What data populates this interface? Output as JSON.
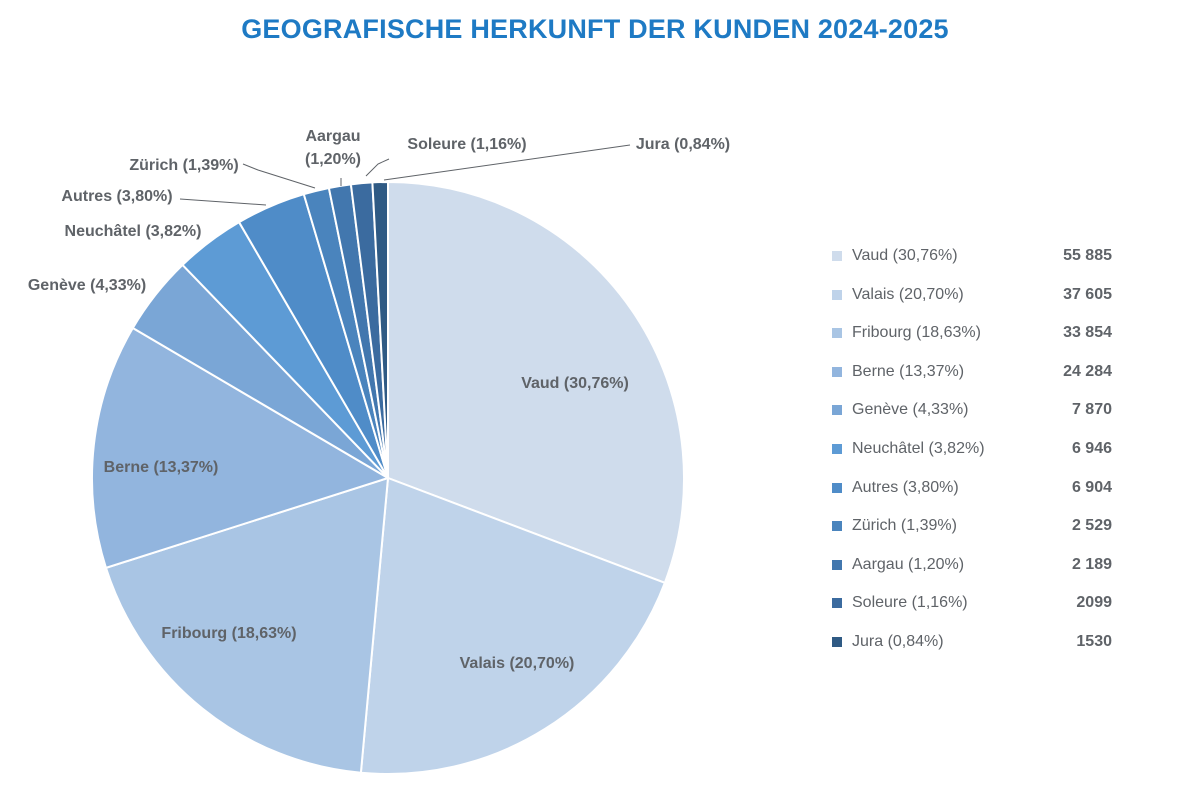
{
  "chart_data": {
    "type": "pie",
    "title": "GEOGRAFISCHE HERKUNFT DER KUNDEN 2024-2025",
    "slices": [
      {
        "label": "Vaud (30,76%)",
        "percent": 30.76,
        "value": 55885,
        "value_text": "55 885",
        "color": "#cfdcec"
      },
      {
        "label": "Valais (20,70%)",
        "percent": 20.7,
        "value": 37605,
        "value_text": "37 605",
        "color": "#bfd3ea"
      },
      {
        "label": "Fribourg (18,63%)",
        "percent": 18.63,
        "value": 33854,
        "value_text": "33 854",
        "color": "#a9c5e4"
      },
      {
        "label": "Berne (13,37%)",
        "percent": 13.37,
        "value": 24284,
        "value_text": "24 284",
        "color": "#92b5de"
      },
      {
        "label": "Genève (4,33%)",
        "percent": 4.33,
        "value": 7870,
        "value_text": "7 870",
        "color": "#7aa6d6"
      },
      {
        "label": "Neuchâtel (3,82%)",
        "percent": 3.82,
        "value": 6946,
        "value_text": "6 946",
        "color": "#5d9bd5"
      },
      {
        "label": "Autres (3,80%)",
        "percent": 3.8,
        "value": 6904,
        "value_text": "6 904",
        "color": "#4f8cc8"
      },
      {
        "label": "Zürich (1,39%)",
        "percent": 1.39,
        "value": 2529,
        "value_text": "2 529",
        "color": "#4a84bd"
      },
      {
        "label": "Aargau (1,20%)",
        "percent": 1.2,
        "value": 2189,
        "value_text": "2 189",
        "color": "#4277ae"
      },
      {
        "label": "Soleure (1,16%)",
        "percent": 1.16,
        "value": 2099,
        "value_text": "2099",
        "color": "#3b6b9f"
      },
      {
        "label": "Jura (0,84%)",
        "percent": 0.84,
        "value": 1530,
        "value_text": "1530",
        "color": "#2f5a84"
      }
    ],
    "legend_position": "right",
    "title_color": "#1e7ac4"
  }
}
